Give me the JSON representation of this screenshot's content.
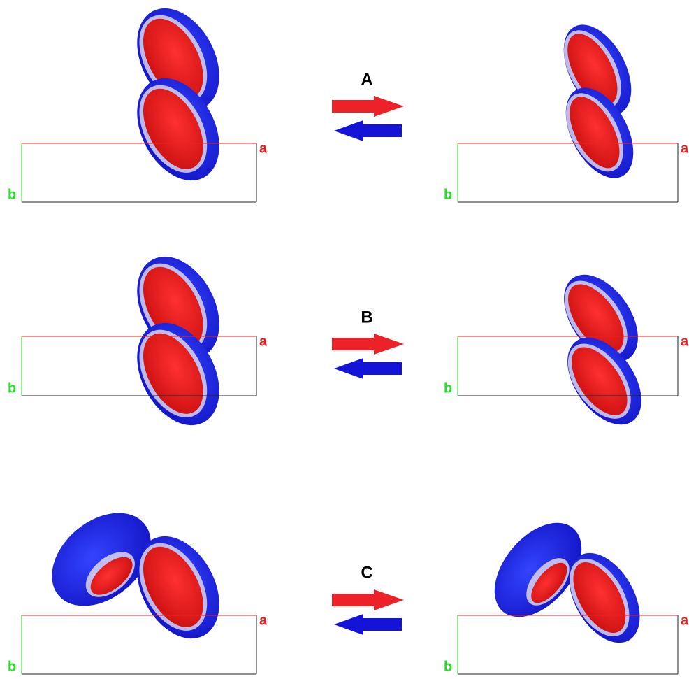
{
  "panels": [
    {
      "label": "A",
      "left": {
        "a": "a",
        "b": "b"
      },
      "right": {
        "a": "a",
        "b": "b"
      }
    },
    {
      "label": "B",
      "left": {
        "a": "a",
        "b": "b"
      },
      "right": {
        "a": "a",
        "b": "b"
      }
    },
    {
      "label": "C",
      "left": {
        "a": "a",
        "b": "b"
      },
      "right": {
        "a": "a",
        "b": "b"
      }
    }
  ]
}
